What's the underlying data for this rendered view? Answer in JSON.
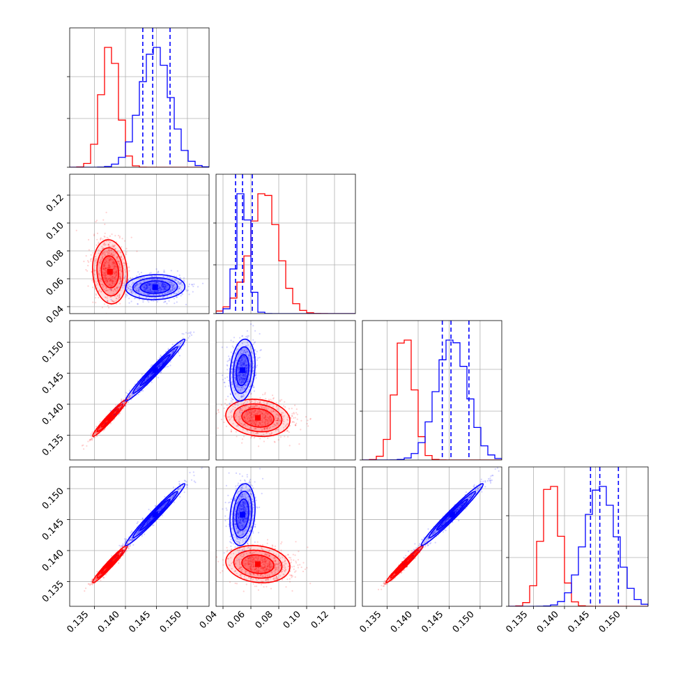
{
  "chart_data": {
    "type": "corner",
    "params": [
      {
        "ticks": [
          0.135,
          0.14,
          0.145,
          0.15
        ],
        "labels": [
          "0.135",
          "0.140",
          "0.145",
          "0.150"
        ],
        "range": [
          0.131,
          0.1535
        ]
      },
      {
        "ticks": [
          0.04,
          0.06,
          0.08,
          0.1,
          0.12
        ],
        "labels": [
          "0.04",
          "0.06",
          "0.08",
          "0.10",
          "0.12"
        ],
        "range": [
          0.035,
          0.135
        ]
      },
      {
        "ticks": [
          0.135,
          0.14,
          0.145,
          0.15
        ],
        "labels": [
          "0.135",
          "0.140",
          "0.145",
          "0.150"
        ],
        "range": [
          0.131,
          0.1535
        ]
      },
      {
        "ticks": [
          0.135,
          0.14,
          0.145,
          0.15
        ],
        "labels": [
          "0.135",
          "0.140",
          "0.145",
          "0.150"
        ],
        "range": [
          0.131,
          0.1535
        ]
      }
    ],
    "series": [
      {
        "color": "#ff0000",
        "means": [
          0.1375,
          0.065,
          0.1378,
          0.1378
        ],
        "sds": [
          0.0014,
          0.0115,
          0.0015,
          0.0015
        ],
        "pair_rho": [
          [
            0,
            -0.1,
            0.97,
            0.97
          ],
          [
            -0.1,
            0,
            -0.15,
            -0.15
          ],
          [
            0.97,
            -0.15,
            0,
            0.98
          ],
          [
            0.97,
            -0.15,
            0.98,
            0
          ]
        ]
      },
      {
        "color": "#0000ff",
        "means": [
          0.1448,
          0.054,
          0.1455,
          0.1458
        ],
        "sds": [
          0.0024,
          0.0045,
          0.0025,
          0.0025
        ],
        "pair_rho": [
          [
            0,
            0.05,
            0.98,
            0.98
          ],
          [
            0.05,
            0,
            0.2,
            0.2
          ],
          [
            0.98,
            0.2,
            0,
            0.98
          ],
          [
            0.98,
            0.2,
            0.98,
            0
          ]
        ],
        "quantile_lines": [
          [
            0.1428,
            0.1444,
            0.1472
          ],
          [
            0.049,
            0.054,
            0.061
          ],
          [
            0.1439,
            0.1453,
            0.1482
          ],
          [
            0.1442,
            0.1457,
            0.1487
          ]
        ]
      }
    ],
    "grid": true,
    "legend": "none"
  }
}
